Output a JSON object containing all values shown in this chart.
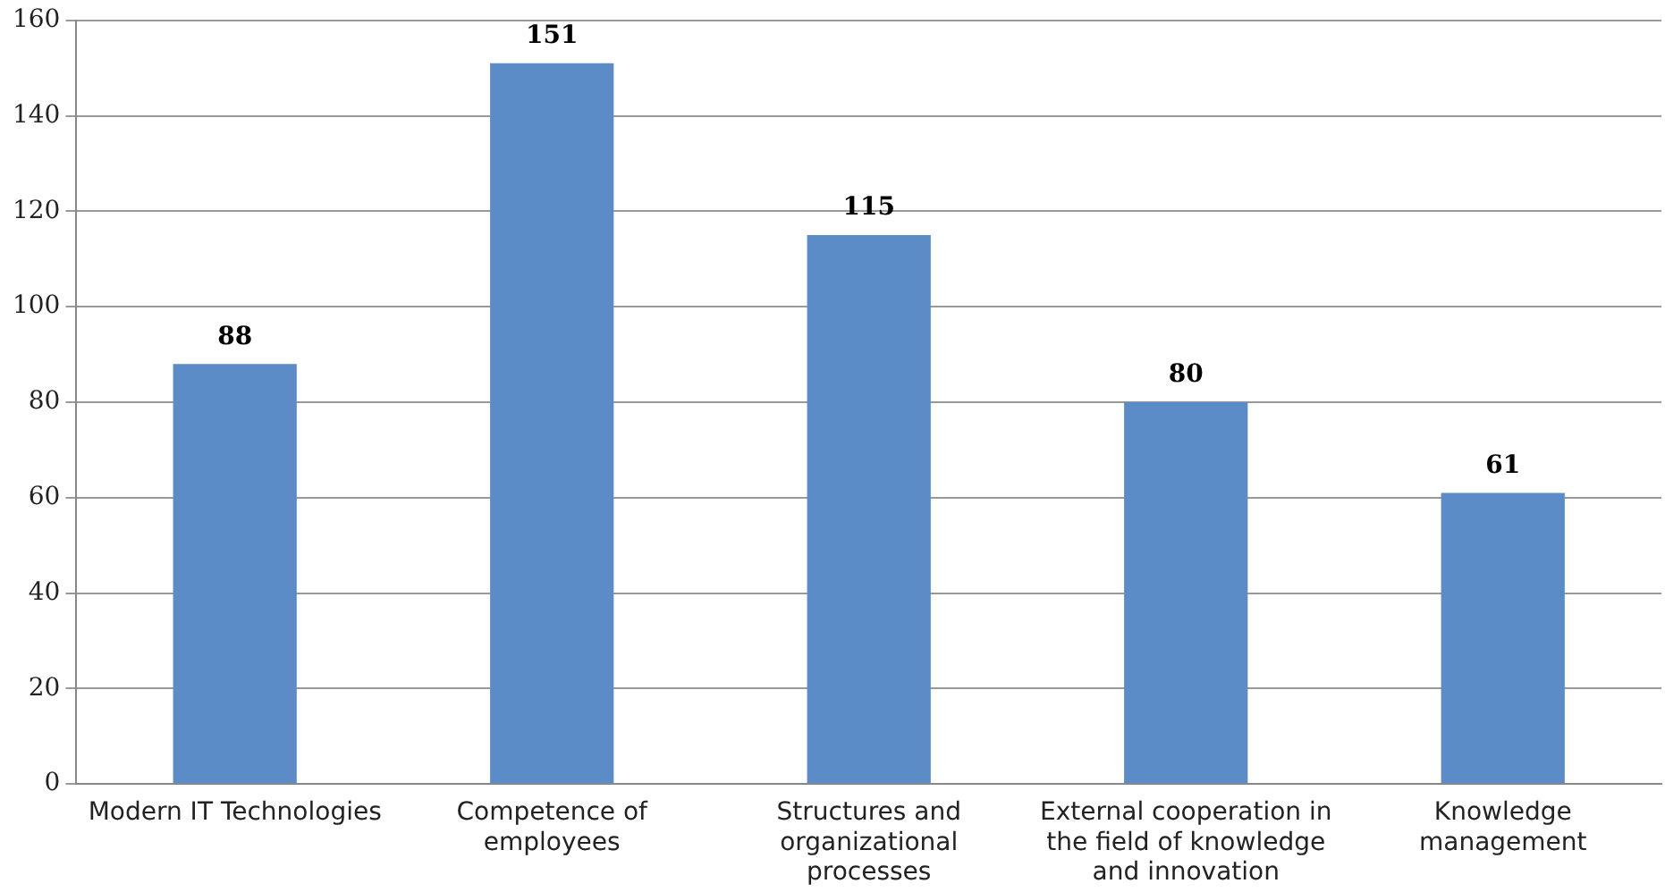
{
  "chart_data": {
    "type": "bar",
    "categories": [
      "Modern IT Technologies",
      "Competence of employees",
      "Structures and organizational processes",
      "External cooperation in the field of knowledge and innovation",
      "Knowledge management"
    ],
    "values": [
      88,
      151,
      115,
      80,
      61
    ],
    "color": "#5b8cc7",
    "ylim": [
      0,
      160
    ],
    "yticks": [
      0,
      20,
      40,
      60,
      80,
      100,
      120,
      140,
      160
    ],
    "grid": "y",
    "data_labels": true,
    "legend": false
  }
}
